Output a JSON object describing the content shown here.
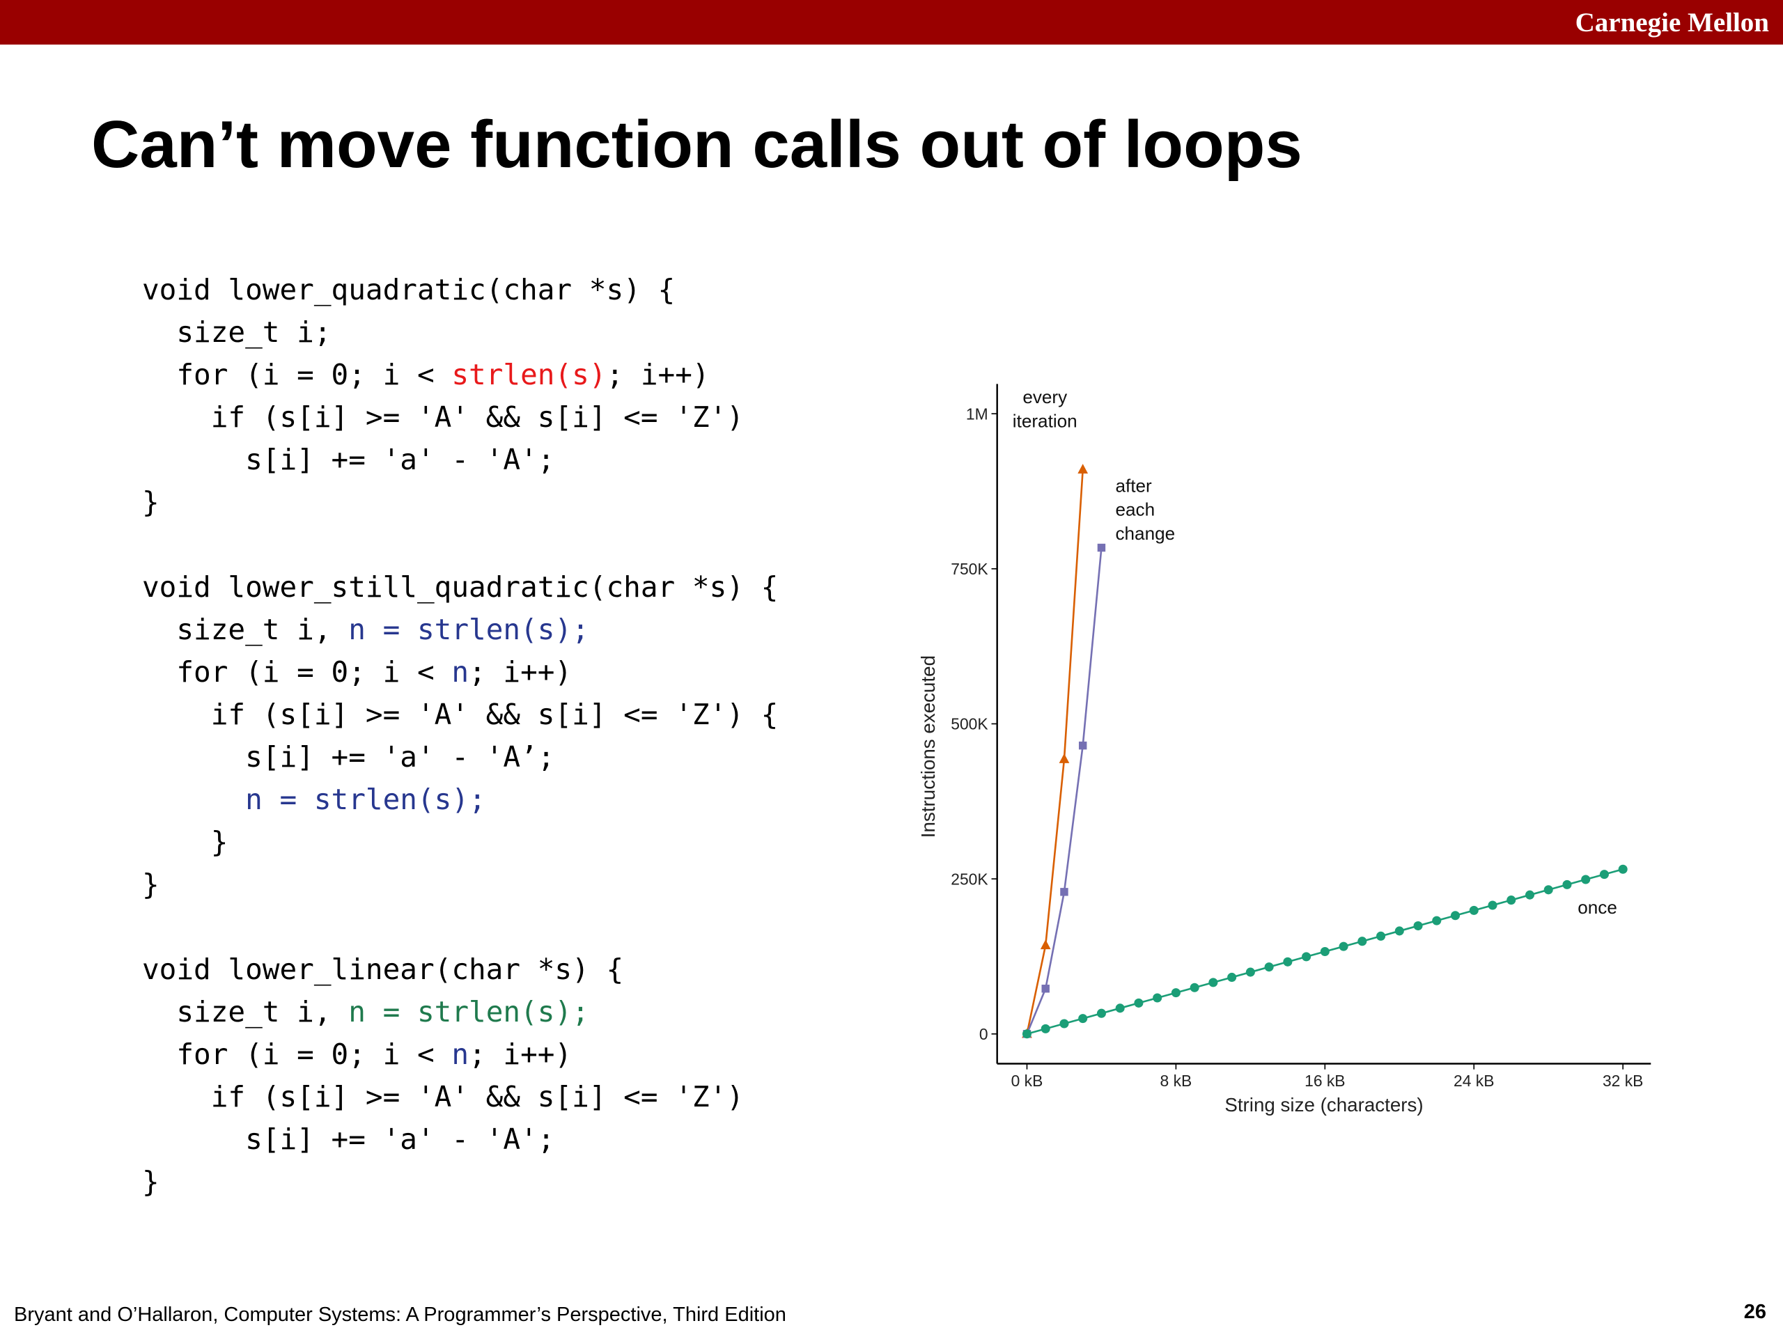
{
  "header": {
    "brand": "Carnegie Mellon"
  },
  "title": "Can’t move function calls out of loops",
  "code": {
    "blocks": [
      {
        "lines": [
          [
            "void lower_quadratic(char *s) {"
          ],
          [
            "  size_t i;"
          ],
          [
            "  for (i = 0; i < ",
            {
              "text": "strlen(s)",
              "color": "#e8191b"
            },
            "; i++)"
          ],
          [
            "    if (s[i] >= 'A' && s[i] <= 'Z')"
          ],
          [
            "      s[i] += 'a' - 'A';"
          ],
          [
            "}"
          ]
        ]
      },
      {
        "lines": [
          [
            "void lower_still_quadratic(char *s) {"
          ],
          [
            "  size_t i, ",
            {
              "text": "n = strlen(s);",
              "color": "#27378f"
            }
          ],
          [
            "  for (i = 0; i < ",
            {
              "text": "n",
              "color": "#27378f"
            },
            "; i++)"
          ],
          [
            "    if (s[i] >= 'A' && s[i] <= 'Z') {"
          ],
          [
            "      s[i] += 'a' - 'A’;"
          ],
          [
            "      ",
            {
              "text": "n = strlen(s);",
              "color": "#27378f"
            }
          ],
          [
            "    }"
          ],
          [
            "}"
          ]
        ]
      },
      {
        "lines": [
          [
            "void lower_linear(char *s) {"
          ],
          [
            "  size_t i, ",
            {
              "text": "n = strlen(s);",
              "color": "#1f7a4d"
            }
          ],
          [
            "  for (i = 0; i < ",
            {
              "text": "n",
              "color": "#27378f"
            },
            "; i++)"
          ],
          [
            "    if (s[i] >= 'A' && s[i] <= 'Z')"
          ],
          [
            "      s[i] += 'a' - 'A';"
          ],
          [
            "}"
          ]
        ]
      }
    ]
  },
  "footer": {
    "citation": "Bryant and O’Hallaron, Computer Systems: A Programmer’s Perspective, Third Edition",
    "page": 26
  },
  "chart_data": {
    "type": "line",
    "xlabel": "String size (characters)",
    "ylabel": "Instructions executed",
    "xlim": [
      -1.6,
      33.5
    ],
    "ylim": [
      -48000,
      1048000
    ],
    "xticks": [
      {
        "value": 0,
        "label": "0 kB"
      },
      {
        "value": 8,
        "label": "8 kB"
      },
      {
        "value": 16,
        "label": "16 kB"
      },
      {
        "value": 24,
        "label": "24 kB"
      },
      {
        "value": 32,
        "label": "32 kB"
      }
    ],
    "yticks": [
      {
        "value": 0,
        "label": "0"
      },
      {
        "value": 250000,
        "label": "250K"
      },
      {
        "value": 500000,
        "label": "500K"
      },
      {
        "value": 750000,
        "label": "750K"
      },
      {
        "value": 1000000,
        "label": "1M"
      }
    ],
    "series": [
      {
        "name": "every iteration",
        "color": "#d95f02",
        "marker": "triangle",
        "x": [
          0,
          1,
          2,
          3
        ],
        "values": [
          0,
          143000,
          443000,
          910000
        ]
      },
      {
        "name": "after each change",
        "color": "#7570b3",
        "marker": "square",
        "x": [
          0,
          1,
          2,
          3,
          4
        ],
        "values": [
          0,
          73000,
          229000,
          465000,
          784000
        ]
      },
      {
        "name": "once",
        "color": "#1b9e77",
        "marker": "circle",
        "x": [
          0,
          1,
          2,
          3,
          4,
          5,
          6,
          7,
          8,
          9,
          10,
          11,
          12,
          13,
          14,
          15,
          16,
          17,
          18,
          19,
          20,
          21,
          22,
          23,
          24,
          25,
          26,
          27,
          28,
          29,
          30,
          31,
          32
        ],
        "values": [
          0,
          8300,
          16600,
          24900,
          33200,
          41500,
          49800,
          58100,
          66400,
          74700,
          83000,
          91300,
          99600,
          107900,
          116200,
          124500,
          132800,
          141100,
          149400,
          157700,
          166000,
          174300,
          182600,
          190900,
          199200,
          207500,
          215800,
          224100,
          232400,
          240700,
          249000,
          257300,
          265600
        ]
      }
    ]
  }
}
